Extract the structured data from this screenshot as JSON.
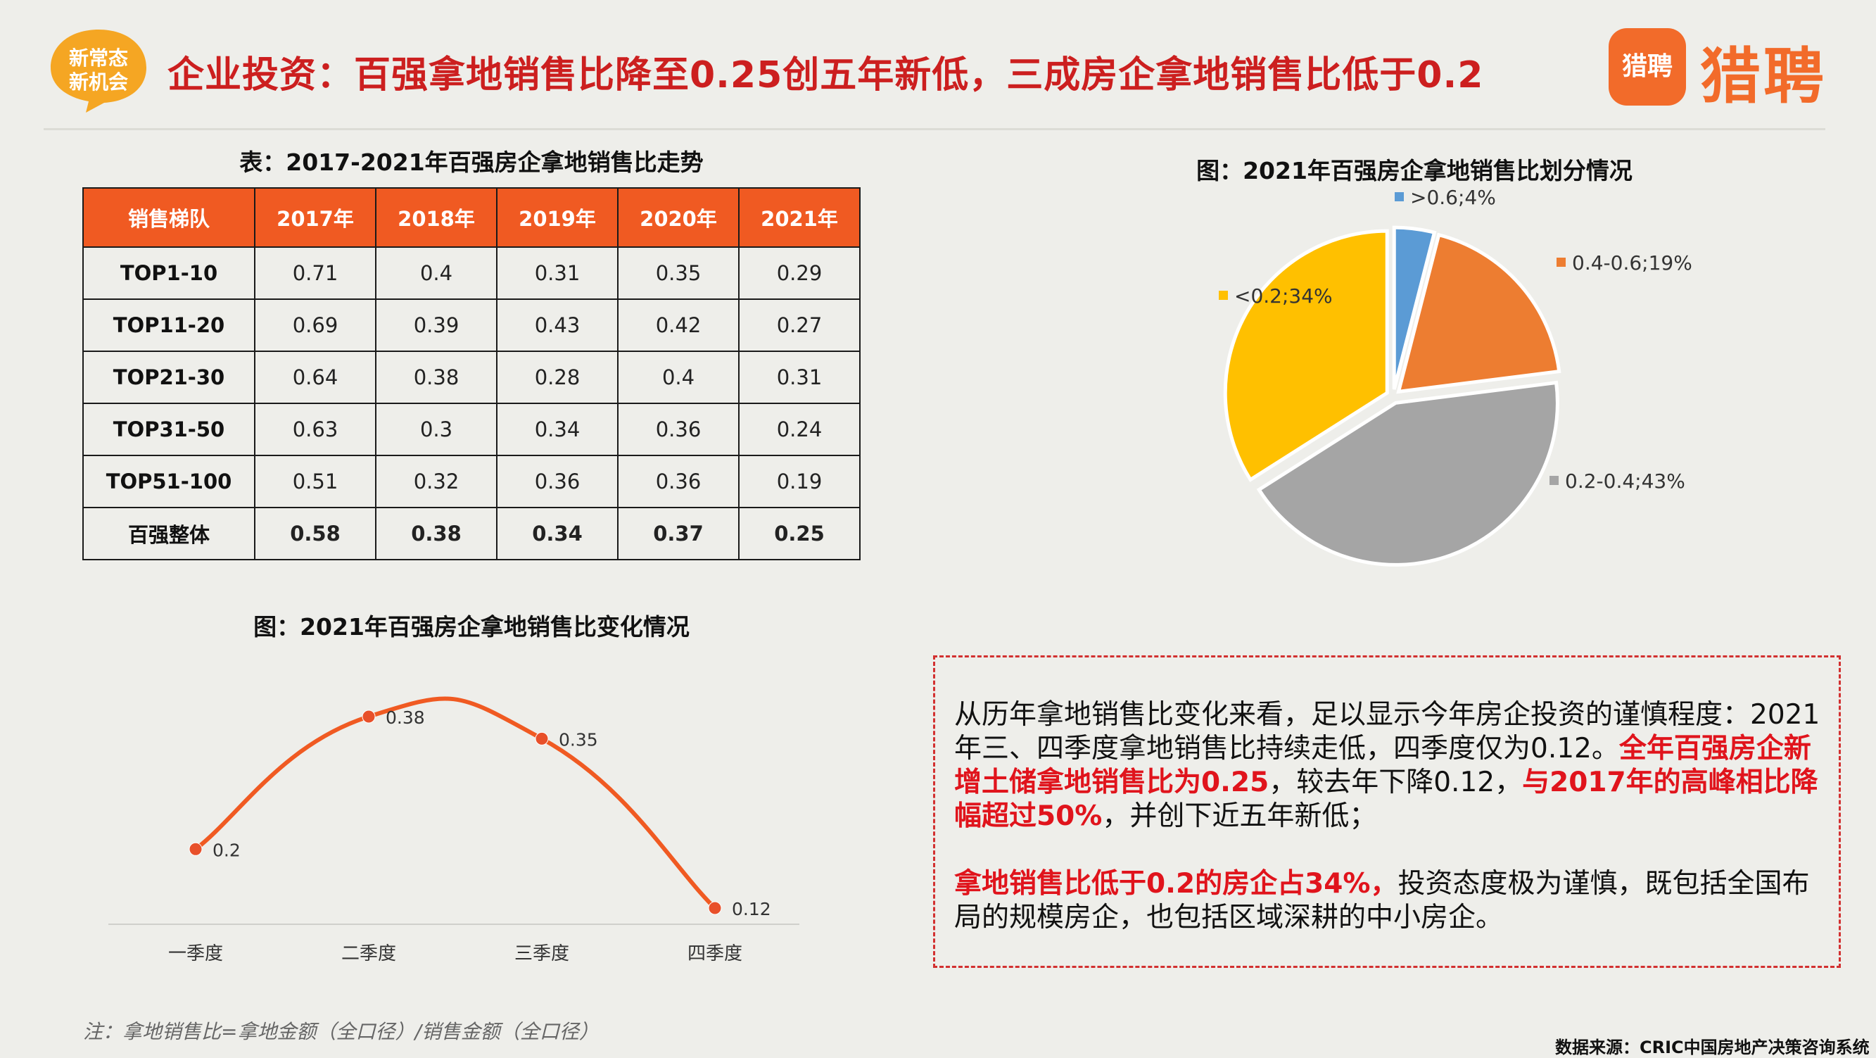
{
  "header": {
    "badge_line1": "新常态",
    "badge_line2": "新机会",
    "title": "企业投资：百强拿地销售比降至0.25创五年新低，三成房企拿地销售比低于0.2",
    "logo_icon_text": "猎聘",
    "logo_text": "猎聘"
  },
  "table": {
    "title": "表：2017-2021年百强房企拿地销售比走势",
    "headers": [
      "销售梯队",
      "2017年",
      "2018年",
      "2019年",
      "2020年",
      "2021年"
    ],
    "rows": [
      [
        "TOP1-10",
        "0.71",
        "0.4",
        "0.31",
        "0.35",
        "0.29"
      ],
      [
        "TOP11-20",
        "0.69",
        "0.39",
        "0.43",
        "0.42",
        "0.27"
      ],
      [
        "TOP21-30",
        "0.64",
        "0.38",
        "0.28",
        "0.4",
        "0.31"
      ],
      [
        "TOP31-50",
        "0.63",
        "0.3",
        "0.34",
        "0.36",
        "0.24"
      ],
      [
        "TOP51-100",
        "0.51",
        "0.32",
        "0.36",
        "0.36",
        "0.19"
      ],
      [
        "百强整体",
        "0.58",
        "0.38",
        "0.34",
        "0.37",
        "0.25"
      ]
    ]
  },
  "chart_data": [
    {
      "type": "pie",
      "title": "图：2021年百强房企拿地销售比划分情况",
      "labels": [
        ">0.6",
        "0.4-0.6",
        "0.2-0.4",
        "<0.2"
      ],
      "values": [
        4,
        19,
        43,
        34
      ],
      "data_labels": [
        ">0.6;4%",
        "0.4-0.6;19%",
        "0.2-0.4;43%",
        "<0.2;34%"
      ],
      "colors": [
        "#5b9bd5",
        "#ed7d31",
        "#a5a5a5",
        "#ffc000"
      ]
    },
    {
      "type": "line",
      "title": "图：2021年百强房企拿地销售比变化情况",
      "categories": [
        "一季度",
        "二季度",
        "三季度",
        "四季度"
      ],
      "values": [
        0.2,
        0.38,
        0.35,
        0.12
      ],
      "data_labels": [
        "0.2",
        "0.38",
        "0.35",
        "0.12"
      ],
      "line_color": "#f05a22",
      "marker_color": "#e8502a",
      "smooth": true
    }
  ],
  "summary": {
    "p1_a": "从历年拿地销售比变化来看，足以显示今年房企投资的谨慎程度：2021年三、四季度拿地销售比持续走低，四季度仅为0.12。",
    "p1_b": "全年百强房企新增土储拿地销售比为0.25",
    "p1_c": "，较去年下降0.12，",
    "p1_d": "与2017年的高峰相比降幅超过50%",
    "p1_e": "，并创下近五年新低；",
    "p2_a": "拿地销售比低于0.2的房企占34%，",
    "p2_b": "投资态度极为谨慎，既包括全国布局的规模房企，也包括区域深耕的中小房企。"
  },
  "footer": {
    "note": "注：拿地销售比=拿地金额（全口径）/销售金额（全口径）",
    "source": "数据来源：CRIC中国房地产决策咨询系统"
  }
}
